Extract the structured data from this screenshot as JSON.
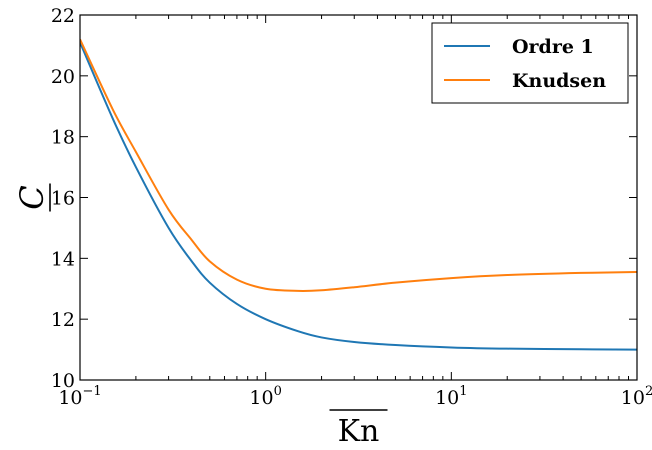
{
  "chart_data": {
    "type": "line",
    "xscale": "log",
    "xlim": [
      0.1,
      100
    ],
    "ylim": [
      10,
      22
    ],
    "xlabel": "Kn",
    "ylabel": "C",
    "yticks": [
      10,
      12,
      14,
      16,
      18,
      20,
      22
    ],
    "ytick_labels": [
      "10",
      "12",
      "14",
      "16",
      "18",
      "20",
      "22"
    ],
    "xticks": [
      0.1,
      1,
      10,
      100
    ],
    "xtick_bases": [
      "10",
      "10",
      "10",
      "10"
    ],
    "xtick_exps": [
      "−1",
      "0",
      "1",
      "2"
    ],
    "grid": false,
    "legend_position": "top-right",
    "series": [
      {
        "name": "Ordre 1",
        "color": "#1f77b4",
        "x": [
          0.1,
          0.15,
          0.2,
          0.3,
          0.4,
          0.5,
          0.7,
          1,
          1.5,
          2,
          3,
          5,
          10,
          20,
          50,
          100
        ],
        "y": [
          21.1,
          18.6,
          17.0,
          15.0,
          13.9,
          13.2,
          12.5,
          12.0,
          11.6,
          11.4,
          11.25,
          11.15,
          11.07,
          11.03,
          11.01,
          11.0
        ]
      },
      {
        "name": "Knudsen",
        "color": "#ff7f0e",
        "x": [
          0.1,
          0.15,
          0.2,
          0.3,
          0.4,
          0.5,
          0.7,
          1,
          1.5,
          2,
          3,
          5,
          10,
          20,
          50,
          100
        ],
        "y": [
          21.2,
          18.9,
          17.5,
          15.6,
          14.6,
          13.9,
          13.3,
          13.0,
          12.93,
          12.95,
          13.05,
          13.2,
          13.35,
          13.45,
          13.52,
          13.55
        ]
      }
    ]
  }
}
